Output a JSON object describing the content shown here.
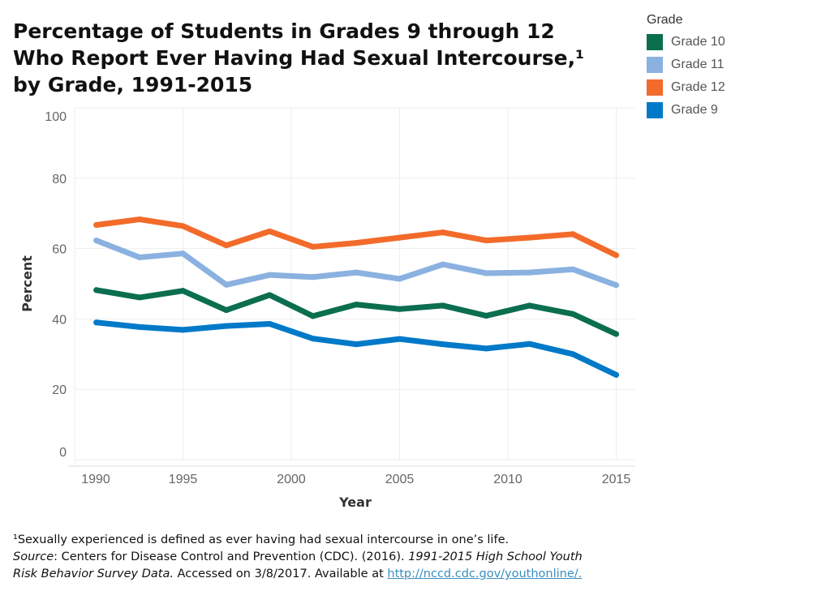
{
  "chart_data": {
    "type": "line",
    "title": "Percentage of Students in Grades 9 through 12\nWho Report  Ever Having Had Sexual Intercourse,¹\nby Grade, 1991-2015",
    "xlabel": "Year",
    "ylabel": "Percent",
    "xlim": [
      1990,
      2015.8
    ],
    "ylim": [
      0,
      100
    ],
    "xticks": [
      1990,
      1995,
      2000,
      2005,
      2010,
      2015
    ],
    "yticks": [
      0,
      20,
      40,
      60,
      80,
      100
    ],
    "x": [
      1991,
      1993,
      1995,
      1997,
      1999,
      2001,
      2003,
      2005,
      2007,
      2009,
      2011,
      2013,
      2015
    ],
    "legend_title": "Grade",
    "legend_position": "top-right",
    "grid": true,
    "series": [
      {
        "name": "Grade 10",
        "color": "#0b6e4f",
        "values": [
          48.2,
          46.1,
          48.0,
          42.5,
          46.8,
          40.8,
          44.1,
          42.8,
          43.8,
          40.9,
          43.8,
          41.4,
          35.7
        ]
      },
      {
        "name": "Grade 11",
        "color": "#8ab1e0",
        "values": [
          62.3,
          57.5,
          58.6,
          49.7,
          52.5,
          51.9,
          53.2,
          51.4,
          55.5,
          53.0,
          53.2,
          54.1,
          49.6
        ]
      },
      {
        "name": "Grade 12",
        "color": "#f26b2a",
        "values": [
          66.7,
          68.3,
          66.4,
          60.9,
          64.9,
          60.5,
          61.6,
          63.1,
          64.6,
          62.3,
          63.1,
          64.1,
          58.1
        ]
      },
      {
        "name": "Grade 9",
        "color": "#0079c8",
        "values": [
          39.0,
          37.7,
          36.9,
          38.0,
          38.6,
          34.4,
          32.8,
          34.3,
          32.8,
          31.6,
          32.9,
          30.0,
          24.1
        ]
      }
    ]
  },
  "footnote": {
    "line1": "¹Sexually experienced is defined as ever having had sexual intercourse in one’s life.",
    "source_label": "Source",
    "source_text": ": Centers for Disease Control and Prevention (CDC). (2016). ",
    "source_title1": "1991-2015 High School Youth",
    "source_title2": "Risk Behavior Survey Data.",
    "accessed": " Accessed on 3/8/2017. Available at ",
    "link": "http://nccd.cdc.gov/youthonline/."
  }
}
